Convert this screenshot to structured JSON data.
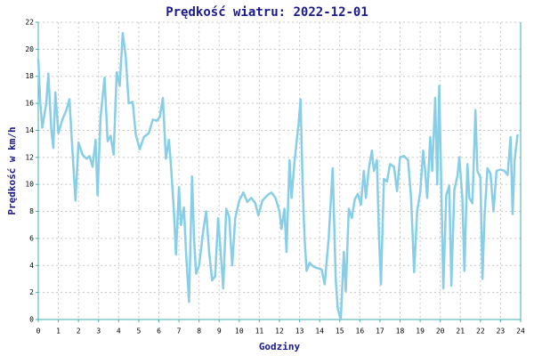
{
  "chart_data": {
    "type": "line",
    "title": "Prędkość wiatru: 2022-12-01",
    "xlabel": "Godziny",
    "ylabel": "Prędkość w km/h",
    "xlim": [
      0,
      24
    ],
    "xticks": [
      0,
      1,
      2,
      3,
      4,
      5,
      6,
      7,
      8,
      9,
      10,
      11,
      12,
      13,
      14,
      15,
      16,
      17,
      18,
      19,
      20,
      21,
      22,
      23,
      24
    ],
    "ylim": [
      0,
      22
    ],
    "yticks": [
      0,
      2,
      4,
      6,
      8,
      10,
      12,
      14,
      16,
      18,
      20,
      22
    ],
    "grid": true,
    "series": [
      {
        "color": "#87cee6",
        "x": [
          0,
          0.1,
          0.2,
          0.4,
          0.5,
          0.65,
          0.75,
          0.85,
          1.0,
          1.2,
          1.4,
          1.55,
          1.7,
          1.85,
          2.0,
          2.2,
          2.4,
          2.55,
          2.7,
          2.85,
          2.95,
          3.1,
          3.3,
          3.45,
          3.6,
          3.75,
          3.9,
          4.05,
          4.2,
          4.35,
          4.5,
          4.7,
          4.85,
          5.05,
          5.25,
          5.5,
          5.7,
          5.9,
          6.05,
          6.2,
          6.35,
          6.5,
          6.6,
          6.75,
          6.85,
          7.0,
          7.1,
          7.25,
          7.35,
          7.5,
          7.65,
          7.75,
          7.85,
          8.0,
          8.2,
          8.35,
          8.5,
          8.65,
          8.8,
          8.95,
          9.05,
          9.2,
          9.35,
          9.5,
          9.65,
          9.8,
          10.0,
          10.2,
          10.4,
          10.6,
          10.8,
          10.95,
          11.15,
          11.4,
          11.6,
          11.8,
          12.0,
          12.1,
          12.25,
          12.35,
          12.5,
          12.6,
          12.75,
          12.95,
          13.05,
          13.15,
          13.25,
          13.35,
          13.5,
          13.7,
          13.9,
          14.1,
          14.25,
          14.45,
          14.65,
          14.8,
          14.9,
          15.05,
          15.2,
          15.3,
          15.45,
          15.6,
          15.75,
          15.9,
          16.05,
          16.2,
          16.3,
          16.45,
          16.6,
          16.7,
          16.85,
          16.95,
          17.05,
          17.2,
          17.35,
          17.5,
          17.7,
          17.85,
          18.0,
          18.2,
          18.4,
          18.55,
          18.7,
          18.85,
          19.0,
          19.15,
          19.25,
          19.35,
          19.5,
          19.6,
          19.75,
          19.85,
          19.95,
          20.05,
          20.15,
          20.3,
          20.45,
          20.55,
          20.7,
          20.85,
          20.95,
          21.1,
          21.2,
          21.35,
          21.45,
          21.6,
          21.75,
          21.85,
          22.0,
          22.1,
          22.2,
          22.35,
          22.5,
          22.65,
          22.8,
          23.0,
          23.2,
          23.35,
          23.5,
          23.6,
          23.7,
          23.85
        ],
        "values": [
          19.3,
          16,
          14.2,
          16,
          18.2,
          14,
          12.7,
          16.8,
          13.8,
          14.8,
          15.5,
          16.3,
          12.5,
          8.8,
          13.1,
          12.2,
          11.9,
          12.1,
          11.3,
          13.3,
          9.2,
          15,
          17.9,
          13.2,
          13.6,
          12.2,
          18.3,
          17.3,
          21.2,
          19.5,
          16,
          16.1,
          13.7,
          12.6,
          13.5,
          13.8,
          14.8,
          14.7,
          15,
          16.4,
          11.9,
          13.3,
          11.5,
          8,
          4.8,
          9.8,
          7,
          8.3,
          5,
          1.3,
          10.6,
          6,
          3.4,
          4,
          6.5,
          8,
          5,
          2.9,
          3.2,
          7.5,
          5.5,
          2.3,
          8.2,
          7.6,
          4,
          7.5,
          8.8,
          9.4,
          8.7,
          9,
          8.6,
          7.7,
          8.8,
          9.2,
          9.4,
          9,
          8,
          6.7,
          8.2,
          5,
          11.8,
          9,
          11.7,
          14.5,
          16.3,
          10,
          6,
          3.6,
          4.2,
          3.9,
          3.8,
          3.7,
          2.6,
          6,
          11.2,
          3,
          0.8,
          0,
          5,
          2.1,
          8.2,
          7.5,
          8.9,
          9.3,
          8.5,
          11,
          9,
          11.2,
          12.5,
          11,
          11.8,
          6.2,
          2.6,
          10.4,
          10.2,
          11.5,
          11.3,
          9.5,
          12,
          12.1,
          11.8,
          9,
          3.5,
          8,
          9.4,
          12.5,
          11,
          9,
          13.5,
          11,
          16.4,
          10,
          17.3,
          10,
          2.3,
          9.2,
          9.9,
          2.5,
          9.6,
          10.6,
          12,
          9,
          3.6,
          11.5,
          9,
          8.6,
          15.5,
          11,
          10.5,
          3,
          7.5,
          11.2,
          10.8,
          8,
          11,
          11.1,
          11,
          10.7,
          13.5,
          7.8,
          11.8,
          13.7
        ]
      }
    ]
  }
}
